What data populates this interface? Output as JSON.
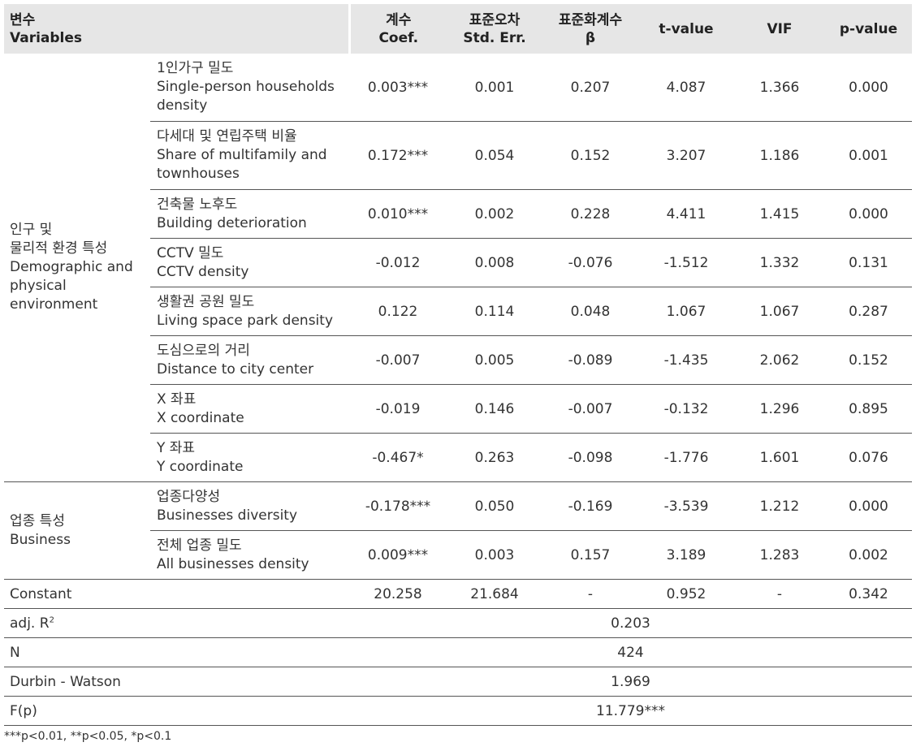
{
  "header": {
    "variables_ko": "변수",
    "variables_en": "Variables",
    "coef_ko": "계수",
    "coef_en": "Coef.",
    "se_ko": "표준오차",
    "se_en": "Std. Err.",
    "beta_ko": "표준화계수",
    "beta_en": "β",
    "t": "t-value",
    "vif": "VIF",
    "p": "p-value"
  },
  "groups": [
    {
      "lines": [
        "인구 및",
        "물리적 환경 특성",
        "Demographic and",
        "physical",
        "environment"
      ]
    },
    {
      "lines": [
        "업종 특성",
        "Business"
      ]
    }
  ],
  "rows": [
    {
      "var": [
        "1인가구 밀도",
        "Single-person households",
        "density"
      ],
      "coef": "0.003***",
      "se": "0.001",
      "beta": "0.207",
      "t": "4.087",
      "vif": "1.366",
      "p": "0.000"
    },
    {
      "var": [
        "다세대 및 연립주택 비율",
        "Share of multifamily and",
        "townhouses"
      ],
      "coef": "0.172***",
      "se": "0.054",
      "beta": "0.152",
      "t": "3.207",
      "vif": "1.186",
      "p": "0.001"
    },
    {
      "var": [
        "건축물 노후도",
        "Building deterioration"
      ],
      "coef": "0.010***",
      "se": "0.002",
      "beta": "0.228",
      "t": "4.411",
      "vif": "1.415",
      "p": "0.000"
    },
    {
      "var": [
        "CCTV 밀도",
        "CCTV density"
      ],
      "coef": "-0.012",
      "se": "0.008",
      "beta": "-0.076",
      "t": "-1.512",
      "vif": "1.332",
      "p": "0.131"
    },
    {
      "var": [
        "생활권 공원 밀도",
        "Living space park density"
      ],
      "coef": "0.122",
      "se": "0.114",
      "beta": "0.048",
      "t": "1.067",
      "vif": "1.067",
      "p": "0.287"
    },
    {
      "var": [
        "도심으로의 거리",
        "Distance to city center"
      ],
      "coef": "-0.007",
      "se": "0.005",
      "beta": "-0.089",
      "t": "-1.435",
      "vif": "2.062",
      "p": "0.152"
    },
    {
      "var": [
        "X 좌표",
        "X coordinate"
      ],
      "coef": "-0.019",
      "se": "0.146",
      "beta": "-0.007",
      "t": "-0.132",
      "vif": "1.296",
      "p": "0.895"
    },
    {
      "var": [
        "Y 좌표",
        "Y coordinate"
      ],
      "coef": "-0.467*",
      "se": "0.263",
      "beta": "-0.098",
      "t": "-1.776",
      "vif": "1.601",
      "p": "0.076"
    },
    {
      "var": [
        "업종다양성",
        "Businesses diversity"
      ],
      "coef": "-0.178***",
      "se": "0.050",
      "beta": "-0.169",
      "t": "-3.539",
      "vif": "1.212",
      "p": "0.000"
    },
    {
      "var": [
        "전체 업종 밀도",
        "All businesses density"
      ],
      "coef": "0.009***",
      "se": "0.003",
      "beta": "0.157",
      "t": "3.189",
      "vif": "1.283",
      "p": "0.002"
    }
  ],
  "constant": {
    "label": "Constant",
    "coef": "20.258",
    "se": "21.684",
    "beta": "-",
    "t": "0.952",
    "vif": "-",
    "p": "0.342"
  },
  "summary": {
    "adj_r2_label": "adj. R",
    "adj_r2_sup": "2",
    "adj_r2": "0.203",
    "n_label": "N",
    "n": "424",
    "dw_label": "Durbin - Watson",
    "dw": "1.969",
    "f_label": "F(p)",
    "f": "11.779***"
  },
  "note": "***p<0.01, **p<0.05, *p<0.1"
}
